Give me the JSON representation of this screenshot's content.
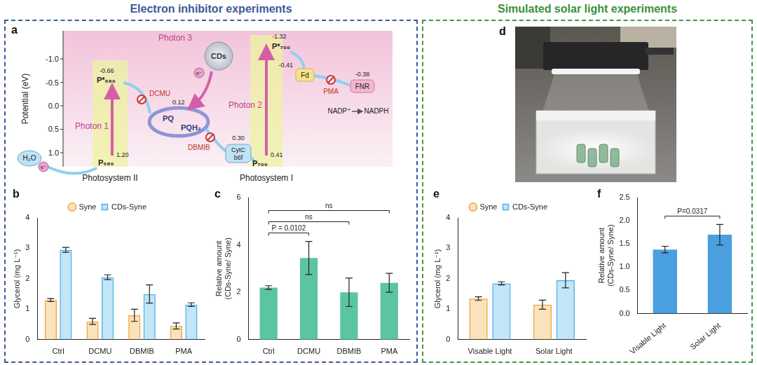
{
  "figure": {
    "left_title": "Electron inhibitor experiments",
    "right_title": "Simulated solar light experiments"
  },
  "diagram": {
    "panel": "a",
    "y_label": "Potential (eV)",
    "ylim": [
      -1.6,
      1.3
    ],
    "yticks": [
      {
        "value": -1,
        "label": "-1.0"
      },
      {
        "value": -0.5,
        "label": "-0.5"
      },
      {
        "value": 0,
        "label": "0.0"
      },
      {
        "value": 0.5,
        "label": "0.5"
      },
      {
        "value": 1,
        "label": "1.0"
      }
    ],
    "photosystems": [
      "Photosystem II",
      "Photosystem I"
    ],
    "photons": [
      "Photon 1",
      "Photon 2",
      "Photon 3"
    ],
    "electron": "e⁻",
    "nodes": {
      "h2o": {
        "label": "H₂O"
      },
      "p680": {
        "label": "P₆₈₀",
        "potential": "1.20"
      },
      "p680x": {
        "label": "P*₆₈₀",
        "potential": "-0.66"
      },
      "pq": {
        "label": "PQ",
        "potential": "0.12"
      },
      "pqh2": {
        "label": "PQH₂"
      },
      "cds": {
        "label": "CDs"
      },
      "cytc": {
        "label": [
          "CytC",
          "b6f"
        ],
        "potential": "0.30"
      },
      "p700": {
        "label": "P₇₀₀",
        "potential": "0.41"
      },
      "p700x": {
        "label": "P*₇₀₀",
        "potential": "-1.32"
      },
      "fd": {
        "label": "Fd",
        "potential": "-0.41"
      },
      "fnr": {
        "label": "FNR",
        "potential": "-0.38"
      },
      "nadp": {
        "label": "NADP⁺"
      },
      "nadph": {
        "label": "NADPH"
      }
    },
    "inhibitors": {
      "dcmu": "DCMU",
      "dbmib": "DBMIB",
      "pma": "PMA"
    }
  },
  "photo": {
    "panel": "d"
  },
  "chart_data": [
    {
      "panel": "b",
      "type": "bar",
      "categories": [
        "Ctrl",
        "DCMU",
        "DBMIB",
        "PMA"
      ],
      "series": [
        {
          "name": "Syne",
          "color": "#f0a73a",
          "values": [
            1.3,
            0.6,
            0.8,
            0.45
          ],
          "errors": [
            0.05,
            0.1,
            0.2,
            0.1
          ]
        },
        {
          "name": "CDs-Syne",
          "color": "#4cb2e6",
          "values": [
            2.95,
            2.05,
            1.5,
            1.15
          ],
          "errors": [
            0.08,
            0.08,
            0.3,
            0.06
          ]
        }
      ],
      "y_label": "Glycerol (mg L⁻¹)",
      "ylim": [
        0,
        4
      ],
      "yticks": [
        0,
        1,
        2,
        3,
        4
      ],
      "legend": "top",
      "grid": false
    },
    {
      "panel": "c",
      "type": "bar",
      "categories": [
        "Ctrl",
        "DCMU",
        "DBMIB",
        "PMA"
      ],
      "values": [
        2.2,
        3.45,
        2.0,
        2.4
      ],
      "errors": [
        0.08,
        0.7,
        0.6,
        0.4
      ],
      "color": "#5cc4a3",
      "y_label": [
        "Relative amount",
        "(CDs-Syne/ Syne)"
      ],
      "ylim": [
        0,
        6
      ],
      "yticks": [
        0,
        2,
        4,
        6
      ],
      "comparisons": [
        {
          "pair": [
            "Ctrl",
            "DCMU"
          ],
          "label": "P = 0.0102"
        },
        {
          "pair": [
            "Ctrl",
            "DBMIB"
          ],
          "label": "ns"
        },
        {
          "pair": [
            "Ctrl",
            "PMA"
          ],
          "label": "ns"
        }
      ],
      "grid": false
    },
    {
      "panel": "e",
      "type": "bar",
      "categories": [
        "Visable Light",
        "Solar Light"
      ],
      "series": [
        {
          "name": "Syne",
          "color": "#f0a73a",
          "values": [
            1.35,
            1.15
          ],
          "errors": [
            0.06,
            0.15
          ]
        },
        {
          "name": "CDs-Syne",
          "color": "#4cb2e6",
          "values": [
            1.85,
            1.95
          ],
          "errors": [
            0.05,
            0.25
          ]
        }
      ],
      "y_label": "Glycerol (mg L⁻¹)",
      "ylim": [
        0,
        4
      ],
      "yticks": [
        0,
        1,
        2,
        3,
        4
      ],
      "legend": "top",
      "grid": false
    },
    {
      "panel": "f",
      "type": "bar",
      "categories": [
        "Visable Light",
        "Solar Light"
      ],
      "values": [
        1.38,
        1.7
      ],
      "errors": [
        0.07,
        0.22
      ],
      "color": "#4a9fde",
      "y_label": [
        "Relative amount",
        "(CDs-Syne/ Syne)"
      ],
      "ylim": [
        0,
        2.5
      ],
      "yticks": [
        {
          "value": 0,
          "label": "0.0"
        },
        0.5,
        {
          "value": 1,
          "label": "1.0"
        },
        1.5,
        {
          "value": 2,
          "label": "2.0"
        },
        2.5
      ],
      "comparisons": [
        {
          "pair": [
            "Visable Light",
            "Solar Light"
          ],
          "label": "P=0.0317"
        }
      ],
      "grid": false
    }
  ]
}
